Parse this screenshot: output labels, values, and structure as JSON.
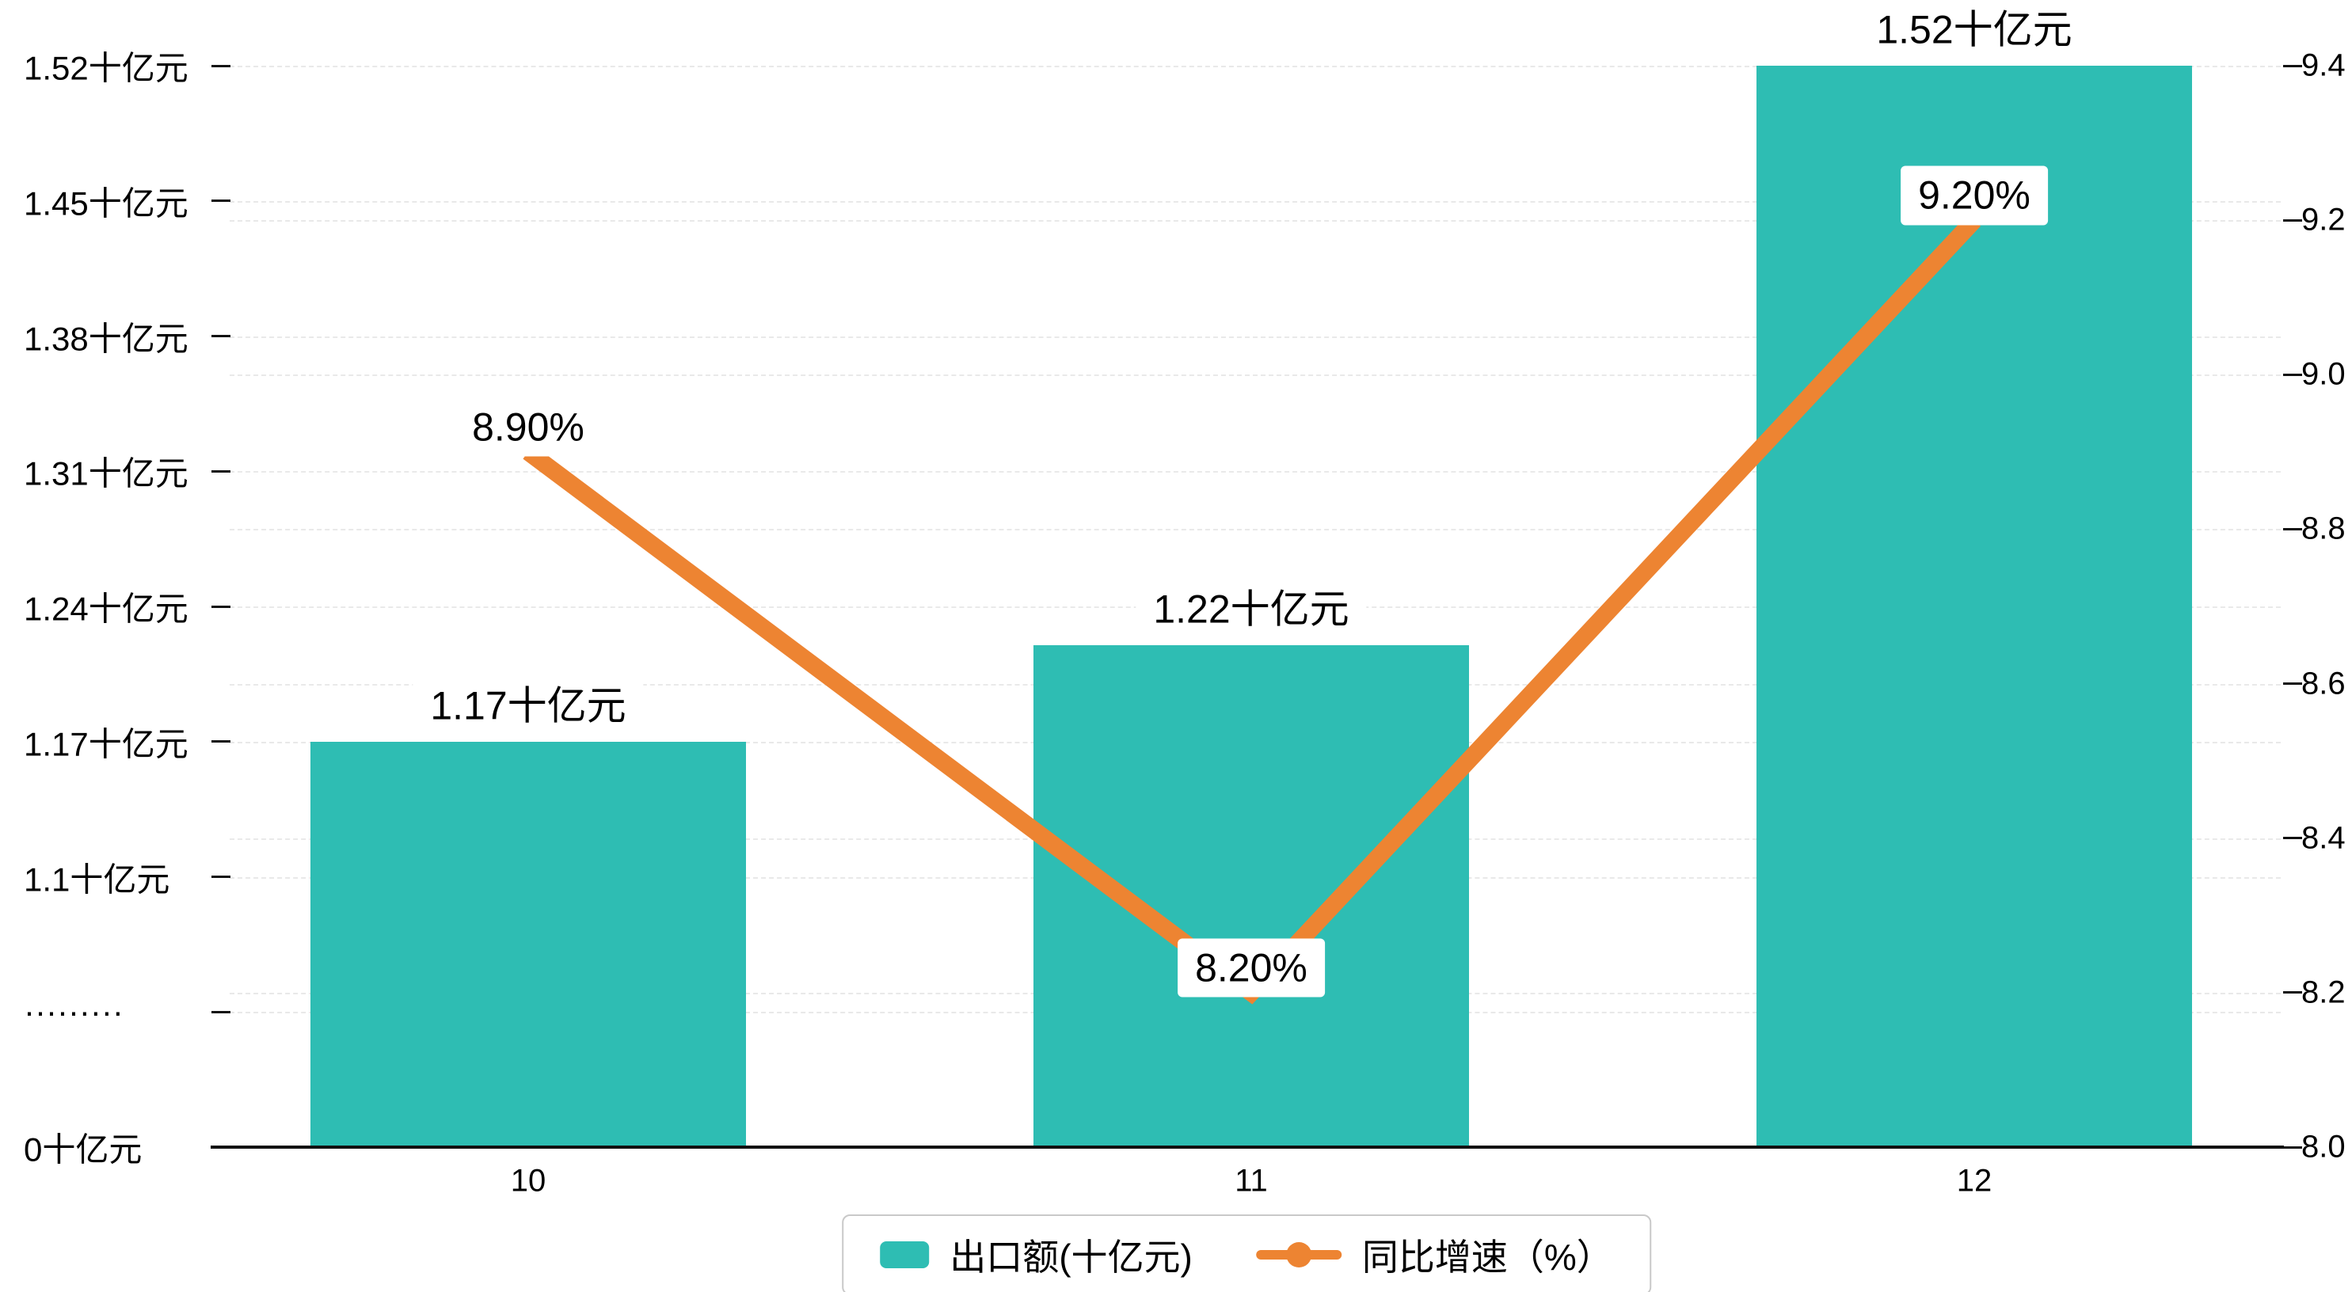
{
  "chart_data": {
    "type": "combo",
    "categories": [
      "10",
      "11",
      "12"
    ],
    "series": [
      {
        "name": "出口额(十亿元)",
        "type": "bar",
        "axis": "left",
        "values": [
          1.17,
          1.22,
          1.52
        ],
        "data_labels": [
          "1.17十亿元",
          "1.22十亿元",
          "1.52十亿元"
        ],
        "color": "#2ebdb3"
      },
      {
        "name": "同比增速（%）",
        "type": "line",
        "axis": "right",
        "values": [
          8.9,
          8.2,
          9.2
        ],
        "data_labels": [
          "8.90%",
          "8.20%",
          "9.20%"
        ],
        "color": "#ed8432"
      }
    ],
    "left_axis": {
      "tick_labels": [
        "0十亿元",
        "·········",
        "1.1十亿元",
        "1.17十亿元",
        "1.24十亿元",
        "1.31十亿元",
        "1.38十亿元",
        "1.45十亿元",
        "1.52十亿元"
      ],
      "break_index": 1,
      "value_start": 1.1,
      "value_step": 0.07,
      "unit": "十亿元"
    },
    "right_axis": {
      "tick_labels": [
        "8.0",
        "8.2",
        "8.4",
        "8.6",
        "8.8",
        "9.0",
        "9.2",
        "9.4"
      ],
      "min": 8.0,
      "max": 9.4
    },
    "grid": {
      "horizontal_dashed": true,
      "color": "#e9e9e9"
    },
    "legend": {
      "position": "bottom",
      "entries": [
        "出口额(十亿元)",
        "同比增速（%）"
      ]
    }
  },
  "colors": {
    "bar": "#2ebdb3",
    "line": "#ed8432",
    "axis": "#111111",
    "grid": "#e9e9e9",
    "label_chip_bg": "#ffffff",
    "text": "#000000",
    "legend_border": "#c9c9c9"
  }
}
